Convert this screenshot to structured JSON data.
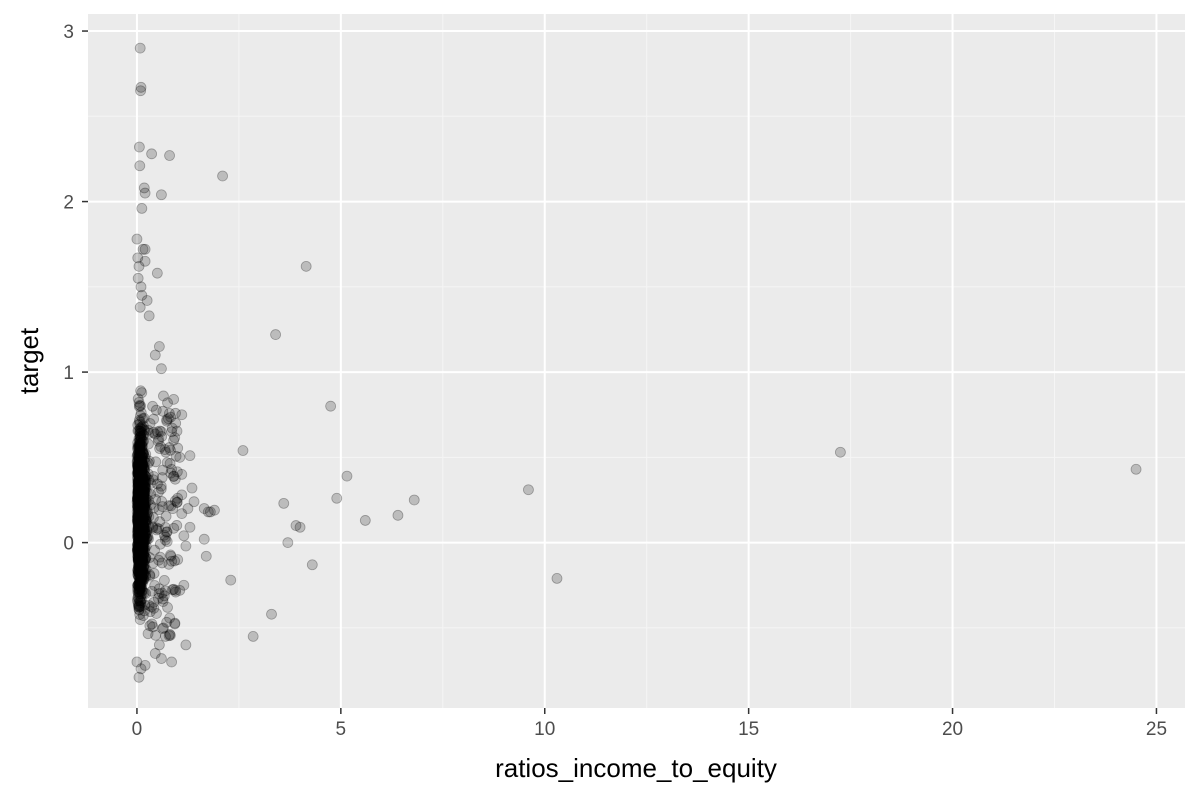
{
  "chart_data": {
    "type": "scatter",
    "title": "",
    "xlabel": "ratios_income_to_equity",
    "ylabel": "target",
    "xlim": [
      -1.2,
      25.7
    ],
    "ylim": [
      -0.97,
      3.1
    ],
    "x_ticks": [
      0,
      5,
      10,
      15,
      20,
      25
    ],
    "x_tick_labels": [
      "0",
      "5",
      "10",
      "15",
      "20",
      "25"
    ],
    "y_ticks": [
      0,
      1,
      2,
      3
    ],
    "y_tick_labels": [
      "0",
      "1",
      "2",
      "3"
    ],
    "grid": true,
    "legend": "none",
    "colors": {
      "panel_background": "#ebebeb",
      "grid_major": "#ffffff",
      "grid_minor": "#f5f5f5",
      "point": "#000000",
      "point_alpha": 0.2
    },
    "points": [
      [
        0.08,
        2.9
      ],
      [
        0.1,
        2.67
      ],
      [
        0.09,
        2.65
      ],
      [
        0.06,
        2.32
      ],
      [
        0.36,
        2.28
      ],
      [
        0.8,
        2.27
      ],
      [
        0.07,
        2.21
      ],
      [
        0.18,
        2.08
      ],
      [
        0.2,
        2.05
      ],
      [
        0.6,
        2.04
      ],
      [
        0.12,
        1.96
      ],
      [
        2.1,
        2.15
      ],
      [
        0.0,
        1.78
      ],
      [
        0.15,
        1.72
      ],
      [
        0.2,
        1.72
      ],
      [
        0.02,
        1.67
      ],
      [
        0.2,
        1.65
      ],
      [
        0.05,
        1.62
      ],
      [
        0.5,
        1.58
      ],
      [
        0.03,
        1.55
      ],
      [
        0.1,
        1.5
      ],
      [
        0.12,
        1.45
      ],
      [
        0.25,
        1.42
      ],
      [
        0.08,
        1.38
      ],
      [
        0.3,
        1.33
      ],
      [
        4.15,
        1.62
      ],
      [
        3.4,
        1.22
      ],
      [
        0.55,
        1.15
      ],
      [
        0.45,
        1.1
      ],
      [
        0.6,
        1.02
      ],
      [
        4.75,
        0.8
      ],
      [
        0.9,
        0.84
      ],
      [
        0.75,
        0.82
      ],
      [
        1.1,
        0.75
      ],
      [
        0.95,
        0.7
      ],
      [
        0.65,
        0.86
      ],
      [
        0.85,
        0.65
      ],
      [
        0.9,
        0.6
      ],
      [
        1.3,
        0.51
      ],
      [
        1.05,
        0.5
      ],
      [
        2.6,
        0.54
      ],
      [
        1.1,
        0.4
      ],
      [
        1.35,
        0.32
      ],
      [
        1.1,
        0.28
      ],
      [
        1.4,
        0.24
      ],
      [
        1.25,
        0.2
      ],
      [
        1.65,
        0.2
      ],
      [
        1.75,
        0.18
      ],
      [
        1.9,
        0.19
      ],
      [
        1.8,
        0.18
      ],
      [
        1.1,
        0.17
      ],
      [
        1.3,
        0.09
      ],
      [
        1.15,
        0.04
      ],
      [
        1.65,
        0.02
      ],
      [
        1.7,
        -0.08
      ],
      [
        1.2,
        -0.02
      ],
      [
        1.0,
        -0.1
      ],
      [
        1.15,
        -0.25
      ],
      [
        1.05,
        -0.28
      ],
      [
        0.95,
        -0.29
      ],
      [
        0.75,
        -0.38
      ],
      [
        0.65,
        -0.5
      ],
      [
        0.7,
        -0.55
      ],
      [
        0.55,
        -0.6
      ],
      [
        0.45,
        -0.65
      ],
      [
        1.2,
        -0.6
      ],
      [
        0.85,
        -0.7
      ],
      [
        0.6,
        -0.68
      ],
      [
        0.2,
        -0.72
      ],
      [
        0.1,
        -0.74
      ],
      [
        0.05,
        -0.79
      ],
      [
        0.0,
        -0.7
      ],
      [
        2.3,
        -0.22
      ],
      [
        2.85,
        -0.55
      ],
      [
        3.3,
        -0.42
      ],
      [
        3.6,
        0.23
      ],
      [
        3.7,
        0.0
      ],
      [
        3.9,
        0.1
      ],
      [
        4.0,
        0.09
      ],
      [
        4.3,
        -0.13
      ],
      [
        4.9,
        0.26
      ],
      [
        5.15,
        0.39
      ],
      [
        5.6,
        0.13
      ],
      [
        6.4,
        0.16
      ],
      [
        6.8,
        0.25
      ],
      [
        9.6,
        0.31
      ],
      [
        10.3,
        -0.21
      ],
      [
        17.25,
        0.53
      ],
      [
        24.5,
        0.43
      ]
    ]
  }
}
